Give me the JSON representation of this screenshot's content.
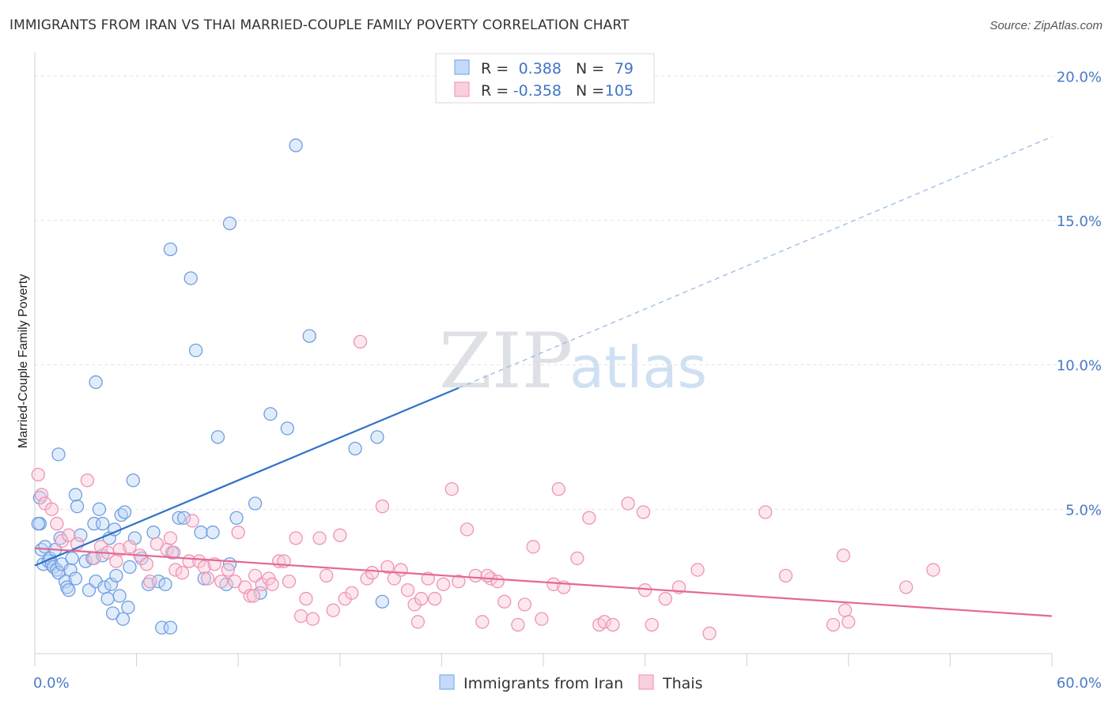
{
  "chart_data": {
    "type": "scatter",
    "title": "IMMIGRANTS FROM IRAN VS THAI MARRIED-COUPLE FAMILY POVERTY CORRELATION CHART",
    "source": "Source: ZipAtlas.com",
    "ylabel": "Married-Couple Family Poverty",
    "watermark": {
      "zip": "ZIP",
      "atlas": "atlas"
    },
    "xlim": [
      0,
      60
    ],
    "ylim": [
      0,
      20.5
    ],
    "x_tick_labels": [
      {
        "value": 0,
        "label": "0.0%"
      },
      {
        "value": 60,
        "label": "60.0%"
      }
    ],
    "y_tick_labels": [
      {
        "value": 5,
        "label": "5.0%"
      },
      {
        "value": 10,
        "label": "10.0%"
      },
      {
        "value": 15,
        "label": "15.0%"
      },
      {
        "value": 20,
        "label": "20.0%"
      }
    ],
    "legend_top": [
      {
        "r_label": "R =",
        "r_value": "0.388",
        "n_label": "N =",
        "n_value": "79",
        "color": "#7aaef0"
      },
      {
        "r_label": "R =",
        "r_value": "-0.358",
        "n_label": "N =",
        "n_value": "105",
        "color": "#f29dbb"
      }
    ],
    "series": [
      {
        "name": "Immigrants from Iran",
        "color": "#7aaef0",
        "line_color": "#2f72c8",
        "trend": {
          "x0": 0,
          "y0": 3.05,
          "x1": 25,
          "y1": 9.2,
          "dash_x1": 60,
          "dash_y1": 17.9
        },
        "points": [
          [
            0.3,
            5.4
          ],
          [
            0.3,
            4.5
          ],
          [
            0.4,
            3.6
          ],
          [
            0.5,
            3.1
          ],
          [
            0.6,
            3.7
          ],
          [
            0.8,
            3.2
          ],
          [
            0.9,
            3.3
          ],
          [
            1.0,
            3.1
          ],
          [
            1.1,
            3.0
          ],
          [
            1.2,
            3.6
          ],
          [
            1.3,
            2.9
          ],
          [
            1.4,
            2.8
          ],
          [
            1.5,
            4.0
          ],
          [
            1.6,
            3.1
          ],
          [
            1.8,
            2.5
          ],
          [
            1.9,
            2.3
          ],
          [
            2.0,
            2.2
          ],
          [
            2.1,
            2.9
          ],
          [
            2.2,
            3.3
          ],
          [
            2.4,
            2.6
          ],
          [
            1.4,
            6.9
          ],
          [
            2.4,
            5.5
          ],
          [
            2.5,
            5.1
          ],
          [
            2.7,
            4.1
          ],
          [
            3.0,
            3.2
          ],
          [
            3.2,
            2.2
          ],
          [
            3.4,
            3.3
          ],
          [
            3.5,
            4.5
          ],
          [
            3.6,
            2.5
          ],
          [
            3.6,
            9.4
          ],
          [
            3.8,
            5.0
          ],
          [
            4.0,
            3.4
          ],
          [
            4.0,
            4.5
          ],
          [
            4.1,
            2.3
          ],
          [
            4.3,
            1.9
          ],
          [
            4.4,
            4.0
          ],
          [
            4.5,
            2.4
          ],
          [
            4.6,
            1.4
          ],
          [
            4.7,
            4.3
          ],
          [
            4.8,
            2.7
          ],
          [
            5.0,
            2.0
          ],
          [
            5.1,
            4.8
          ],
          [
            5.2,
            1.2
          ],
          [
            5.3,
            4.9
          ],
          [
            5.5,
            1.6
          ],
          [
            5.6,
            3.0
          ],
          [
            5.8,
            6.0
          ],
          [
            5.9,
            4.0
          ],
          [
            6.3,
            3.3
          ],
          [
            6.7,
            2.4
          ],
          [
            7.0,
            4.2
          ],
          [
            7.3,
            2.5
          ],
          [
            7.5,
            0.9
          ],
          [
            7.7,
            2.4
          ],
          [
            8.0,
            14.0
          ],
          [
            8.0,
            0.9
          ],
          [
            8.1,
            3.5
          ],
          [
            8.5,
            4.7
          ],
          [
            8.8,
            4.7
          ],
          [
            9.2,
            13.0
          ],
          [
            9.5,
            10.5
          ],
          [
            9.8,
            4.2
          ],
          [
            10.0,
            2.6
          ],
          [
            10.5,
            4.2
          ],
          [
            10.8,
            7.5
          ],
          [
            11.3,
            2.4
          ],
          [
            11.5,
            3.1
          ],
          [
            11.5,
            14.9
          ],
          [
            11.9,
            4.7
          ],
          [
            13.0,
            5.2
          ],
          [
            13.3,
            2.1
          ],
          [
            13.9,
            8.3
          ],
          [
            14.9,
            7.8
          ],
          [
            15.4,
            17.6
          ],
          [
            16.2,
            11.0
          ],
          [
            18.9,
            7.1
          ],
          [
            20.5,
            1.8
          ],
          [
            20.2,
            7.5
          ],
          [
            0.2,
            4.5
          ]
        ]
      },
      {
        "name": "Thais",
        "color": "#f29dbb",
        "line_color": "#e36993",
        "trend": {
          "x0": 0,
          "y0": 3.65,
          "x1": 60,
          "y1": 1.3
        },
        "points": [
          [
            0.2,
            6.2
          ],
          [
            0.4,
            5.5
          ],
          [
            0.6,
            5.2
          ],
          [
            1.0,
            5.0
          ],
          [
            1.3,
            4.5
          ],
          [
            1.6,
            3.9
          ],
          [
            2.0,
            4.1
          ],
          [
            2.5,
            3.8
          ],
          [
            3.1,
            6.0
          ],
          [
            3.5,
            3.3
          ],
          [
            3.9,
            3.7
          ],
          [
            4.3,
            3.5
          ],
          [
            4.8,
            3.2
          ],
          [
            5.0,
            3.6
          ],
          [
            5.6,
            3.7
          ],
          [
            6.2,
            3.4
          ],
          [
            6.6,
            3.1
          ],
          [
            6.8,
            2.5
          ],
          [
            7.2,
            3.8
          ],
          [
            7.8,
            3.6
          ],
          [
            8.0,
            4.0
          ],
          [
            8.3,
            2.9
          ],
          [
            8.7,
            2.8
          ],
          [
            9.1,
            3.2
          ],
          [
            9.3,
            4.6
          ],
          [
            9.7,
            3.2
          ],
          [
            10.0,
            3.0
          ],
          [
            10.2,
            2.6
          ],
          [
            10.6,
            3.1
          ],
          [
            11.0,
            2.5
          ],
          [
            11.4,
            2.9
          ],
          [
            11.8,
            2.5
          ],
          [
            12.0,
            4.2
          ],
          [
            12.4,
            2.3
          ],
          [
            12.7,
            2.0
          ],
          [
            13.0,
            2.7
          ],
          [
            13.4,
            2.4
          ],
          [
            13.8,
            2.6
          ],
          [
            14.0,
            2.4
          ],
          [
            14.4,
            3.2
          ],
          [
            14.7,
            3.2
          ],
          [
            15.0,
            2.5
          ],
          [
            15.4,
            4.0
          ],
          [
            15.7,
            1.3
          ],
          [
            16.0,
            1.9
          ],
          [
            16.4,
            1.2
          ],
          [
            16.8,
            4.0
          ],
          [
            17.2,
            2.7
          ],
          [
            17.6,
            1.5
          ],
          [
            18.0,
            4.1
          ],
          [
            18.3,
            1.9
          ],
          [
            18.7,
            2.1
          ],
          [
            19.2,
            10.8
          ],
          [
            19.6,
            2.6
          ],
          [
            19.9,
            2.8
          ],
          [
            20.5,
            5.1
          ],
          [
            20.8,
            3.0
          ],
          [
            21.2,
            2.6
          ],
          [
            21.6,
            2.9
          ],
          [
            22.0,
            2.2
          ],
          [
            22.4,
            1.7
          ],
          [
            22.8,
            1.9
          ],
          [
            23.2,
            2.6
          ],
          [
            23.6,
            1.9
          ],
          [
            24.1,
            2.4
          ],
          [
            24.6,
            5.7
          ],
          [
            25.0,
            2.5
          ],
          [
            25.5,
            4.3
          ],
          [
            26.0,
            2.7
          ],
          [
            26.4,
            1.1
          ],
          [
            26.9,
            2.6
          ],
          [
            27.3,
            2.5
          ],
          [
            27.7,
            1.8
          ],
          [
            28.5,
            1.0
          ],
          [
            28.9,
            1.7
          ],
          [
            29.4,
            3.7
          ],
          [
            29.9,
            1.2
          ],
          [
            30.6,
            2.4
          ],
          [
            30.9,
            5.7
          ],
          [
            31.2,
            2.3
          ],
          [
            32.0,
            3.3
          ],
          [
            32.7,
            4.7
          ],
          [
            33.3,
            1.0
          ],
          [
            33.6,
            1.1
          ],
          [
            34.1,
            1.0
          ],
          [
            35.0,
            5.2
          ],
          [
            35.9,
            4.9
          ],
          [
            36.0,
            2.2
          ],
          [
            36.4,
            1.0
          ],
          [
            37.2,
            1.9
          ],
          [
            38.0,
            2.3
          ],
          [
            39.1,
            2.9
          ],
          [
            39.8,
            0.7
          ],
          [
            43.1,
            4.9
          ],
          [
            44.3,
            2.7
          ],
          [
            47.1,
            1.0
          ],
          [
            47.7,
            3.4
          ],
          [
            47.8,
            1.5
          ],
          [
            48.0,
            1.1
          ],
          [
            51.4,
            2.3
          ],
          [
            53.0,
            2.9
          ],
          [
            8.2,
            3.5
          ],
          [
            12.9,
            2.0
          ],
          [
            26.7,
            2.7
          ],
          [
            22.6,
            1.1
          ]
        ]
      }
    ],
    "legend_bottom_placement": "bottom-center",
    "legend_top_placement": "top-center"
  }
}
